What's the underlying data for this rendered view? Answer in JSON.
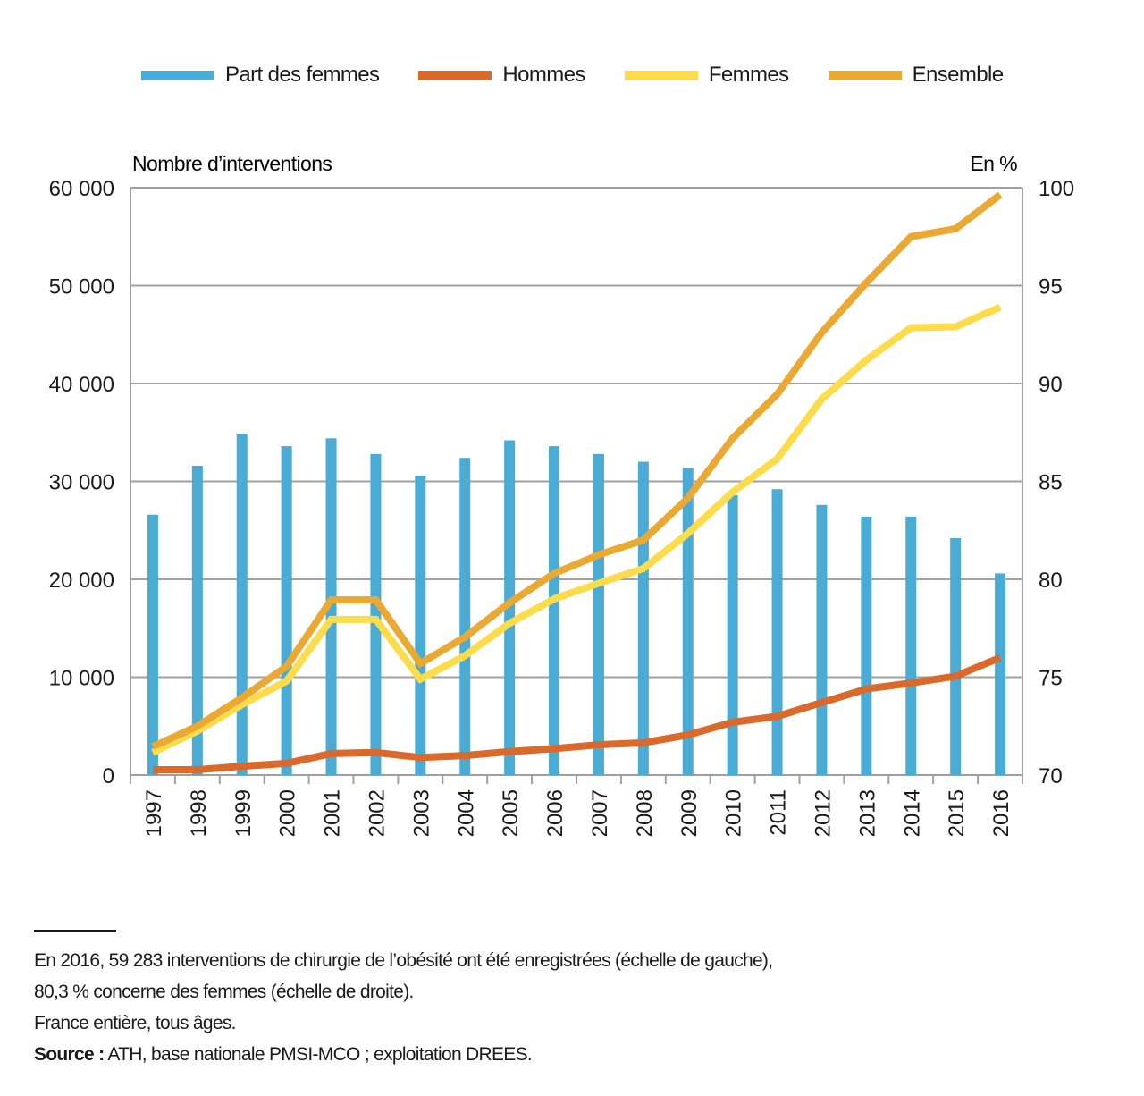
{
  "legend": [
    {
      "label": "Part des femmes",
      "color": "#4aabd4"
    },
    {
      "label": "Hommes",
      "color": "#d96a2b"
    },
    {
      "label": "Femmes",
      "color": "#fcdc4a"
    },
    {
      "label": "Ensemble",
      "color": "#eaa932"
    }
  ],
  "chart_data": {
    "type": "bar+line",
    "title": "",
    "left_axis_label": "Nombre d’interventions",
    "right_axis_label": "En %",
    "categories": [
      "1997",
      "1998",
      "1999",
      "2000",
      "2001",
      "2002",
      "2003",
      "2004",
      "2005",
      "2006",
      "2007",
      "2008",
      "2009",
      "2010",
      "2011",
      "2012",
      "2013",
      "2014",
      "2015",
      "2016"
    ],
    "left_ylim": [
      0,
      60000
    ],
    "left_ticks": [
      "0",
      "10 000",
      "20 000",
      "30 000",
      "40 000",
      "50 000",
      "60 000"
    ],
    "right_ylim": [
      70,
      100
    ],
    "right_ticks": [
      "70",
      "75",
      "80",
      "85",
      "90",
      "95",
      "100"
    ],
    "grid": true,
    "legend_position": "top",
    "series": [
      {
        "name": "Part des femmes",
        "type": "bar",
        "axis": "right",
        "color": "#4aabd4",
        "values": [
          83.3,
          85.8,
          87.4,
          86.8,
          87.2,
          86.4,
          85.3,
          86.2,
          87.1,
          86.8,
          86.4,
          86.0,
          85.7,
          84.3,
          84.6,
          83.8,
          83.2,
          83.2,
          82.1,
          80.3
        ]
      },
      {
        "name": "Hommes",
        "type": "line",
        "axis": "left",
        "color": "#d96a2b",
        "values": [
          550,
          550,
          900,
          1200,
          2200,
          2300,
          1800,
          2000,
          2400,
          2700,
          3100,
          3300,
          4100,
          5400,
          6000,
          7400,
          8800,
          9400,
          10100,
          12000
        ]
      },
      {
        "name": "Femmes",
        "type": "line",
        "axis": "left",
        "color": "#fcdc4a",
        "values": [
          2300,
          4500,
          7200,
          9600,
          15900,
          15900,
          9800,
          12200,
          15500,
          18000,
          19600,
          21100,
          24700,
          28900,
          32300,
          38400,
          42400,
          45700,
          45800,
          47800
        ]
      },
      {
        "name": "Ensemble",
        "type": "line",
        "axis": "left",
        "color": "#eaa932",
        "values": [
          2900,
          5000,
          7900,
          11100,
          17900,
          17900,
          11400,
          14100,
          17600,
          20600,
          22500,
          24000,
          28300,
          34400,
          38900,
          45200,
          50300,
          55000,
          55800,
          59283
        ]
      }
    ]
  },
  "notes": {
    "line1": "En 2016, 59 283 interventions de chirurgie de l’obésité ont été enregistrées (échelle de gauche),",
    "line2": "80,3 % concerne des femmes (échelle de droite).",
    "line3": "France entière, tous âges.",
    "source_label": "Source :",
    "source_text": " ATH, base nationale PMSI-MCO ; exploitation DREES."
  }
}
